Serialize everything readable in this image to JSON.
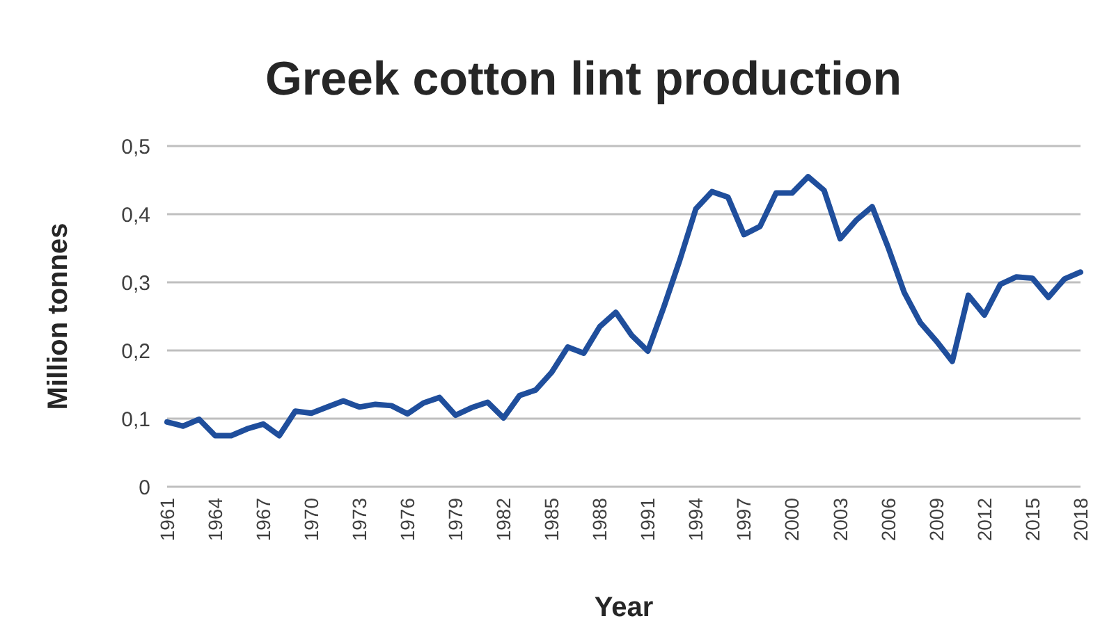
{
  "chart_data": {
    "type": "line",
    "title": "Greek cotton lint production",
    "xlabel": "Year",
    "ylabel": "Million tonnes",
    "categories": [
      "1961",
      null,
      null,
      "1964",
      null,
      null,
      "1967",
      null,
      null,
      "1970",
      null,
      null,
      "1973",
      null,
      null,
      "1976",
      null,
      null,
      "1979",
      null,
      null,
      "1982",
      null,
      null,
      "1985",
      null,
      null,
      "1988",
      null,
      null,
      "1991",
      null,
      null,
      "1994",
      null,
      null,
      "1997",
      null,
      null,
      "2000",
      null,
      null,
      "2003",
      null,
      null,
      "2006",
      null,
      null,
      "2009",
      null,
      null,
      "2012",
      null,
      null,
      "2015",
      null,
      null,
      "2018"
    ],
    "series": [
      {
        "color": "#1f4e9c",
        "values": [
          0.095,
          0.089,
          0.099,
          0.075,
          0.075,
          0.085,
          0.092,
          0.075,
          0.111,
          0.108,
          0.117,
          0.126,
          0.117,
          0.121,
          0.119,
          0.107,
          0.123,
          0.131,
          0.105,
          0.116,
          0.124,
          0.101,
          0.134,
          0.142,
          0.168,
          0.205,
          0.196,
          0.235,
          0.256,
          0.222,
          0.199,
          0.264,
          0.333,
          0.408,
          0.433,
          0.425,
          0.37,
          0.382,
          0.431,
          0.431,
          0.455,
          0.435,
          0.364,
          0.391,
          0.411,
          0.351,
          0.285,
          0.241,
          0.214,
          0.184,
          0.281,
          0.252,
          0.297,
          0.308,
          0.306,
          0.278,
          0.305,
          0.315
        ]
      }
    ],
    "ylim": [
      0,
      0.5
    ],
    "yticks": [
      0,
      {
        "value": 0.1,
        "label": "0,1"
      },
      {
        "value": 0.2,
        "label": "0,2"
      },
      {
        "value": 0.3,
        "label": "0,3"
      },
      {
        "value": 0.4,
        "label": "0,4"
      },
      {
        "value": 0.5,
        "label": "0,5"
      }
    ],
    "grid": "y",
    "marker": "none",
    "line_style": "solid"
  }
}
